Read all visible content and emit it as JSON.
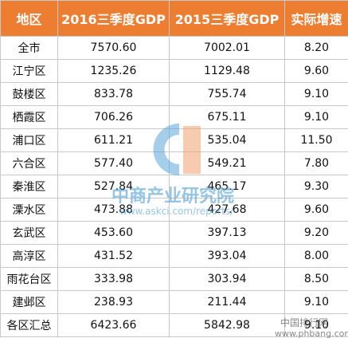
{
  "table": {
    "header": [
      "地区",
      "2016三季度GDP",
      "2015三季度GDP",
      "实际增速"
    ],
    "rows": [
      [
        "全市",
        "7570.60",
        "7002.01",
        "8.20"
      ],
      [
        "江宁区",
        "1235.26",
        "1129.48",
        "9.60"
      ],
      [
        "鼓楼区",
        "833.78",
        "755.74",
        "9.10"
      ],
      [
        "栖霞区",
        "706.26",
        "675.11",
        "9.10"
      ],
      [
        "浦口区",
        "611.21",
        "535.04",
        "11.50"
      ],
      [
        "六合区",
        "577.40",
        "549.21",
        "7.80"
      ],
      [
        "秦淮区",
        "527.84",
        "465.17",
        "9.30"
      ],
      [
        "溧水区",
        "473.88",
        "427.68",
        "9.60"
      ],
      [
        "玄武区",
        "453.60",
        "397.13",
        "9.20"
      ],
      [
        "高淳区",
        "431.52",
        "393.04",
        "8.00"
      ],
      [
        "雨花台区",
        "333.98",
        "303.94",
        "8.50"
      ],
      [
        "建邺区",
        "238.93",
        "211.44",
        "9.10"
      ],
      [
        "各区汇总",
        "6423.66",
        "5842.98",
        "9.10"
      ]
    ]
  },
  "watermarks": {
    "center_name": "中商产业研究院",
    "center_url": "www.askci.com/reports/",
    "corner_name": "中国排行网",
    "corner_url": "www.phbang.com"
  }
}
